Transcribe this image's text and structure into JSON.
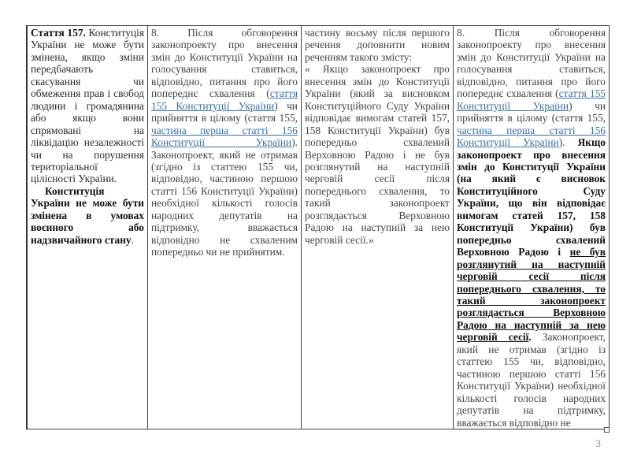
{
  "table": {
    "col1": {
      "p1_bold": "Стаття 157.",
      "p1_text": " Конституція України не може бути змінена, якщо зміни передбачають скасування чи обмеження прав і свобод людини і громадянина або якщо вони спрямовані на ліквідацію незалежності чи на порушення територіальної цілісності України.",
      "p2_bold": "Конституція України не може бути змінена в умовах воєнного або надзвичайного стану",
      "p2_end": "."
    },
    "col2": {
      "t1": "8. Після обговорення законопроекту про внесення змін до Конституції України на голосування ставиться, відповідно, питання про його попереднє схвалення (",
      "link1": "стаття 155 Конституції України",
      "t2": ") чи прийняття в цілому (стаття 155, ",
      "link2": "частина перша статті 156 Конституції України",
      "t3": "). Законопроект, який не отримав (згідно із статтею 155 чи, відповідно, частиною першою статті 156 Конституції України) необхідної кількості голосів народних депутатів на підтримку, вважається відповідно не схваленим попередньо чи не прийнятим."
    },
    "col3": {
      "t1": "частину восьму після першого речення доповнити новим реченням такого змісту:",
      "t2": "« Якщо законопроект про внесення змін до Конституції України (який за висновком Конституційного Суду України відповідає вимогам статей 157, 158 Конституції України) був попередньо схвалений Верховною Радою і не був розглянутий на наступній черговій сесії після попереднього схвалення, то такий законопроект розглядається Верховною Радою на наступній за нею черговій сесії.»"
    },
    "col4": {
      "t1": "8. Після обговорення законопроекту про внесення змін до Конституції України на голосування ставиться, відповідно, питання про його попереднє схвалення (",
      "link1": "стаття 155 Конституції України",
      "t2": ") чи прийняття в цілому (стаття 155, ",
      "link2": "частина перша статті 156 Конституції України",
      "t3": "). ",
      "bold1": "Якщо законопроект про внесення змін до Конституції України (на який є висновок Конституційного Суду України, що він відповідає вимогам статей 157, 158 Конституції України) був попередньо схвалений Верховною Радою і ",
      "bold_underlined": "не був розглянутий на наступній черговій сесії після попереднього схвалення, то такий законопроект розглядається Верховною Радою на наступній за нею черговій сесії",
      "bold_end": ".",
      "t4": " Законопроект, який не отримав (згідно із статтею 155 чи, відповідно, частиною першою статті 156 Конституції України) необхідної кількості голосів народних депутатів на підтримку, вважається відповідно не"
    }
  },
  "page_number": "3",
  "colors": {
    "link": "#3a6fa0",
    "text": "#2a2a2a"
  }
}
